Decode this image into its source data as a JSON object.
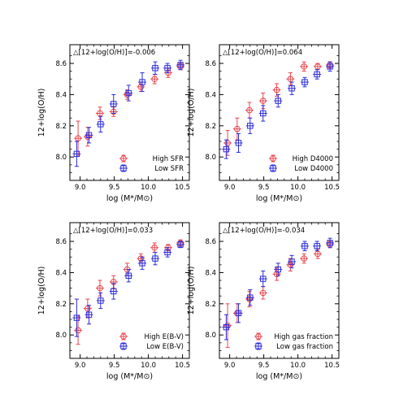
{
  "figure": {
    "y_axis_label": "12+log(O/H)",
    "x_axis_label": "log (M*/M⊙)"
  },
  "colors": {
    "red": "#e8464f",
    "blue": "#2b2bdb"
  },
  "chart_data": [
    {
      "type": "scatter",
      "annotation": "△[12+log(O/H)]=-0.006",
      "xlim": [
        8.85,
        10.6
      ],
      "ylim": [
        7.85,
        8.72
      ],
      "xticks": [
        "9.0",
        "9.5",
        "10.0",
        "10.5"
      ],
      "yticks": [
        "8.0",
        "8.2",
        "8.4",
        "8.6"
      ],
      "legend_position": "lower-right",
      "series": [
        {
          "name": "High SFR",
          "color": "red",
          "marker": "circle-plus",
          "x": [
            8.97,
            9.11,
            9.29,
            9.49,
            9.69,
            9.89,
            10.09,
            10.29,
            10.47
          ],
          "y": [
            8.12,
            8.13,
            8.28,
            8.29,
            8.4,
            8.45,
            8.5,
            8.54,
            8.58
          ],
          "yerr": [
            0.11,
            0.06,
            0.04,
            0.03,
            0.03,
            0.03,
            0.03,
            0.03,
            0.02
          ]
        },
        {
          "name": "Low SFR",
          "color": "blue",
          "marker": "square-plus",
          "x": [
            8.95,
            9.13,
            9.3,
            9.49,
            9.71,
            9.91,
            10.1,
            10.28,
            10.47
          ],
          "y": [
            8.02,
            8.14,
            8.21,
            8.34,
            8.41,
            8.48,
            8.57,
            8.57,
            8.59
          ],
          "yerr": [
            0.08,
            0.05,
            0.05,
            0.06,
            0.05,
            0.06,
            0.04,
            0.03,
            0.03
          ]
        }
      ]
    },
    {
      "type": "scatter",
      "annotation": "△[12+log(O/H)]=0.064",
      "xlim": [
        8.85,
        10.6
      ],
      "ylim": [
        7.85,
        8.72
      ],
      "xticks": [
        "9.0",
        "9.5",
        "10.0",
        "10.5"
      ],
      "yticks": [
        "8.0",
        "8.2",
        "8.4",
        "8.6"
      ],
      "legend_position": "lower-right",
      "series": [
        {
          "name": "High D4000",
          "color": "red",
          "marker": "circle-plus",
          "x": [
            8.97,
            9.11,
            9.29,
            9.49,
            9.69,
            9.89,
            10.09,
            10.29,
            10.47
          ],
          "y": [
            8.09,
            8.18,
            8.3,
            8.36,
            8.43,
            8.5,
            8.58,
            8.58,
            8.59
          ],
          "yerr": [
            0.08,
            0.07,
            0.05,
            0.05,
            0.04,
            0.04,
            0.03,
            0.02,
            0.02
          ]
        },
        {
          "name": "Low D4000",
          "color": "blue",
          "marker": "square-plus",
          "x": [
            8.95,
            9.13,
            9.3,
            9.49,
            9.71,
            9.91,
            10.1,
            10.28,
            10.47
          ],
          "y": [
            8.05,
            8.09,
            8.2,
            8.28,
            8.36,
            8.44,
            8.48,
            8.53,
            8.58
          ],
          "yerr": [
            0.06,
            0.06,
            0.05,
            0.05,
            0.04,
            0.04,
            0.03,
            0.03,
            0.03
          ]
        }
      ]
    },
    {
      "type": "scatter",
      "annotation": "△[12+log(O/H)]=0.033",
      "xlim": [
        8.85,
        10.6
      ],
      "ylim": [
        7.85,
        8.72
      ],
      "xticks": [
        "9.0",
        "9.5",
        "10.0",
        "10.5"
      ],
      "yticks": [
        "8.0",
        "8.2",
        "8.4",
        "8.6"
      ],
      "legend_position": "lower-right",
      "series": [
        {
          "name": "High E(B-V)",
          "color": "red",
          "marker": "circle-plus",
          "x": [
            8.97,
            9.11,
            9.29,
            9.49,
            9.69,
            9.89,
            10.09,
            10.29,
            10.47
          ],
          "y": [
            8.03,
            8.17,
            8.3,
            8.34,
            8.42,
            8.49,
            8.56,
            8.56,
            8.59
          ],
          "yerr": [
            0.09,
            0.06,
            0.05,
            0.04,
            0.04,
            0.03,
            0.03,
            0.02,
            0.02
          ]
        },
        {
          "name": "Low E(B-V)",
          "color": "blue",
          "marker": "square-plus",
          "x": [
            8.95,
            9.13,
            9.3,
            9.49,
            9.71,
            9.91,
            10.1,
            10.28,
            10.47
          ],
          "y": [
            8.11,
            8.13,
            8.22,
            8.28,
            8.38,
            8.46,
            8.49,
            8.53,
            8.58
          ],
          "yerr": [
            0.12,
            0.06,
            0.05,
            0.05,
            0.04,
            0.04,
            0.04,
            0.03,
            0.02
          ]
        }
      ]
    },
    {
      "type": "scatter",
      "annotation": "△[12+log(O/H)]=-0.034",
      "xlim": [
        8.85,
        10.6
      ],
      "ylim": [
        7.85,
        8.72
      ],
      "xticks": [
        "9.0",
        "9.5",
        "10.0",
        "10.5"
      ],
      "yticks": [
        "8.0",
        "8.2",
        "8.4",
        "8.6"
      ],
      "legend_position": "lower-right",
      "series": [
        {
          "name": "High gas fraction",
          "color": "red",
          "marker": "circle-plus",
          "x": [
            8.97,
            9.11,
            9.29,
            9.49,
            9.69,
            9.89,
            10.09,
            10.29,
            10.47
          ],
          "y": [
            8.06,
            8.14,
            8.23,
            8.27,
            8.39,
            8.45,
            8.49,
            8.52,
            8.58
          ],
          "yerr": [
            0.14,
            0.06,
            0.05,
            0.04,
            0.04,
            0.04,
            0.03,
            0.03,
            0.02
          ]
        },
        {
          "name": "Low gas fraction",
          "color": "blue",
          "marker": "square-plus",
          "x": [
            8.95,
            9.13,
            9.3,
            9.49,
            9.71,
            9.91,
            10.1,
            10.28,
            10.47
          ],
          "y": [
            8.05,
            8.14,
            8.24,
            8.36,
            8.42,
            8.47,
            8.57,
            8.57,
            8.59
          ],
          "yerr": [
            0.08,
            0.06,
            0.05,
            0.05,
            0.04,
            0.04,
            0.03,
            0.03,
            0.03
          ]
        }
      ]
    }
  ]
}
